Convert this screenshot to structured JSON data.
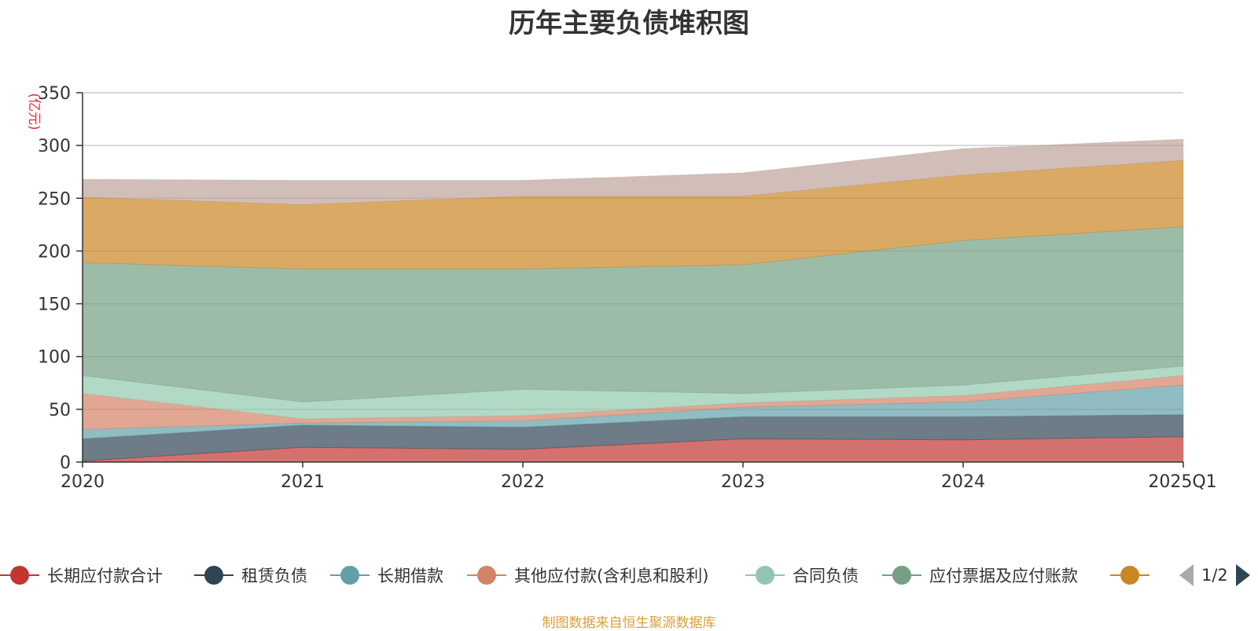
{
  "chart_data": {
    "type": "area",
    "stacked": true,
    "title": "历年主要负债堆积图",
    "ylabel": "(亿元)",
    "xlabel": "",
    "ylim": [
      0,
      350
    ],
    "yticks": [
      "0",
      "50",
      "100",
      "150",
      "200",
      "250",
      "300",
      "350"
    ],
    "categories": [
      "2020",
      "2021",
      "2022",
      "2023",
      "2024",
      "2025Q1"
    ],
    "grid": true,
    "series": [
      {
        "name": "长期应付款合计",
        "color": "#c23531",
        "values": [
          1,
          14,
          12,
          22,
          21,
          24
        ]
      },
      {
        "name": "租赁负债",
        "color": "#2f4554",
        "values": [
          21,
          21,
          21,
          21,
          22,
          21
        ]
      },
      {
        "name": "长期借款",
        "color": "#61a0a8",
        "values": [
          9,
          2,
          6,
          9,
          14,
          28
        ]
      },
      {
        "name": "其他应付款(含利息和股利)",
        "color": "#d48265",
        "values": [
          34,
          4,
          5,
          4,
          6,
          9
        ]
      },
      {
        "name": "合同负债",
        "color": "#91c7ae",
        "values": [
          17,
          16,
          25,
          9,
          10,
          9
        ]
      },
      {
        "name": "应付票据及应付账款",
        "color": "#749f83",
        "values": [
          107,
          126,
          114,
          122,
          137,
          132
        ]
      },
      {
        "name": "",
        "color": "#ca8622",
        "values": [
          62,
          61,
          69,
          65,
          62,
          63
        ]
      },
      {
        "name": "",
        "color": "#bda29a",
        "values": [
          17,
          23,
          15,
          22,
          25,
          20
        ]
      }
    ],
    "legend_position": "bottom",
    "legend_visible_count": 7
  },
  "legend": {
    "page_indicator": "1/2"
  },
  "source_note": "制图数据来自恒生聚源数据库"
}
